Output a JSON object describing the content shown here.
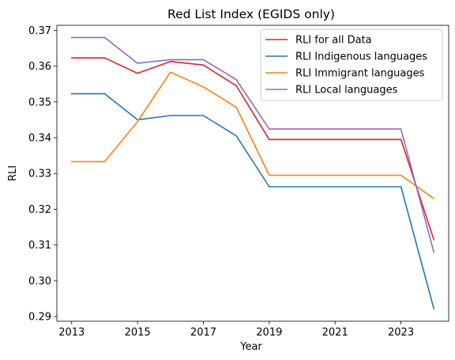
{
  "chart_data": {
    "type": "line",
    "title": "Red List Index (EGIDS only)",
    "xlabel": "Year",
    "ylabel": "RLI",
    "x": [
      2013,
      2014,
      2015,
      2016,
      2017,
      2018,
      2019,
      2020,
      2021,
      2022,
      2023,
      2024
    ],
    "xticks": [
      2013,
      2015,
      2017,
      2019,
      2021,
      2023
    ],
    "yticks": [
      0.29,
      0.3,
      0.31,
      0.32,
      0.33,
      0.34,
      0.35,
      0.36,
      0.37
    ],
    "xlim": [
      2012.55,
      2024.45
    ],
    "ylim": [
      0.2887,
      0.3714
    ],
    "grid": false,
    "legend_position": "top-right",
    "series": [
      {
        "name": "RLI for all Data",
        "color": "#d62728",
        "values": [
          0.3623,
          0.3623,
          0.358,
          0.3613,
          0.3603,
          0.3545,
          0.3395,
          0.3395,
          0.3395,
          0.3395,
          0.3395,
          0.3115
        ]
      },
      {
        "name": "RLI Indigenous languages",
        "color": "#1f77b4",
        "values": [
          0.3523,
          0.3523,
          0.345,
          0.3462,
          0.3462,
          0.3405,
          0.3263,
          0.3263,
          0.3263,
          0.3263,
          0.3263,
          0.2922
        ]
      },
      {
        "name": "RLI Immigrant languages",
        "color": "#ff7f0e",
        "values": [
          0.3333,
          0.3333,
          0.3445,
          0.3583,
          0.3542,
          0.3485,
          0.3295,
          0.3295,
          0.3295,
          0.3295,
          0.3295,
          0.323
        ]
      },
      {
        "name": "RLI Local languages",
        "color": "#9467bd",
        "values": [
          0.368,
          0.368,
          0.3608,
          0.3618,
          0.3618,
          0.3562,
          0.3424,
          0.3424,
          0.3424,
          0.3424,
          0.3424,
          0.308
        ]
      }
    ]
  }
}
